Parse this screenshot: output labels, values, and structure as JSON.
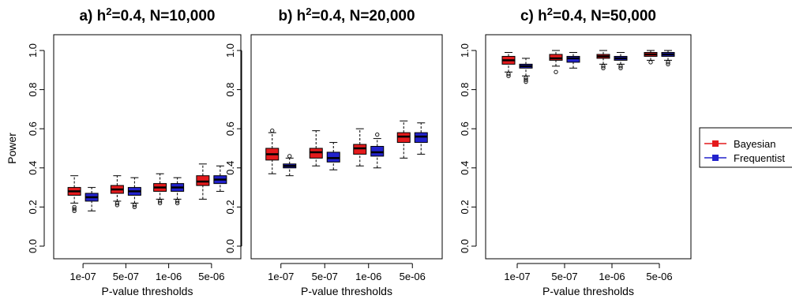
{
  "chart_data": [
    {
      "type": "box",
      "title": "a) h²=0.4, N=10,000",
      "title_main": "a) h",
      "title_sup": "2",
      "title_rest": "=0.4, N=10,000",
      "xlabel": "P-value thresholds",
      "ylabel": "Power",
      "ylim": [
        0,
        1
      ],
      "yticks": [
        "0.0",
        "0.2",
        "0.4",
        "0.6",
        "0.8",
        "1.0"
      ],
      "categories": [
        "1e-07",
        "5e-07",
        "1e-06",
        "5e-06"
      ],
      "series": [
        {
          "name": "Bayesian",
          "color": "#e41a1c",
          "boxes": [
            {
              "min": 0.22,
              "q1": 0.26,
              "median": 0.28,
              "q3": 0.3,
              "max": 0.36,
              "outliers": [
                0.2,
                0.19,
                0.18
              ]
            },
            {
              "min": 0.23,
              "q1": 0.27,
              "median": 0.29,
              "q3": 0.31,
              "max": 0.36,
              "outliers": [
                0.22,
                0.21
              ]
            },
            {
              "min": 0.24,
              "q1": 0.28,
              "median": 0.3,
              "q3": 0.32,
              "max": 0.37,
              "outliers": [
                0.23,
                0.22
              ]
            },
            {
              "min": 0.24,
              "q1": 0.31,
              "median": 0.33,
              "q3": 0.36,
              "max": 0.42,
              "outliers": []
            }
          ]
        },
        {
          "name": "Frequentist",
          "color": "#2222cc",
          "boxes": [
            {
              "min": 0.18,
              "q1": 0.23,
              "median": 0.25,
              "q3": 0.27,
              "max": 0.3,
              "outliers": []
            },
            {
              "min": 0.22,
              "q1": 0.26,
              "median": 0.28,
              "q3": 0.3,
              "max": 0.35,
              "outliers": [
                0.21,
                0.2
              ]
            },
            {
              "min": 0.24,
              "q1": 0.28,
              "median": 0.3,
              "q3": 0.32,
              "max": 0.35,
              "outliers": [
                0.23,
                0.22
              ]
            },
            {
              "min": 0.28,
              "q1": 0.32,
              "median": 0.34,
              "q3": 0.36,
              "max": 0.41,
              "outliers": []
            }
          ]
        }
      ]
    },
    {
      "type": "box",
      "title": "b) h²=0.4, N=20,000",
      "title_main": "b) h",
      "title_sup": "2",
      "title_rest": "=0.4, N=20,000",
      "xlabel": "P-value thresholds",
      "ylabel": "",
      "ylim": [
        0,
        1
      ],
      "yticks": [
        "0.0",
        "0.2",
        "0.4",
        "0.6",
        "0.8",
        "1.0"
      ],
      "categories": [
        "1e-07",
        "5e-07",
        "1e-06",
        "5e-06"
      ],
      "series": [
        {
          "name": "Bayesian",
          "color": "#e41a1c",
          "boxes": [
            {
              "min": 0.37,
              "q1": 0.44,
              "median": 0.47,
              "q3": 0.5,
              "max": 0.58,
              "outliers": [
                0.59
              ]
            },
            {
              "min": 0.41,
              "q1": 0.45,
              "median": 0.48,
              "q3": 0.5,
              "max": 0.59,
              "outliers": []
            },
            {
              "min": 0.41,
              "q1": 0.47,
              "median": 0.5,
              "q3": 0.52,
              "max": 0.6,
              "outliers": []
            },
            {
              "min": 0.45,
              "q1": 0.53,
              "median": 0.56,
              "q3": 0.58,
              "max": 0.64,
              "outliers": []
            }
          ]
        },
        {
          "name": "Frequentist",
          "color": "#2222cc",
          "boxes": [
            {
              "min": 0.36,
              "q1": 0.4,
              "median": 0.41,
              "q3": 0.42,
              "max": 0.45,
              "outliers": [
                0.46
              ]
            },
            {
              "min": 0.39,
              "q1": 0.43,
              "median": 0.45,
              "q3": 0.48,
              "max": 0.53,
              "outliers": []
            },
            {
              "min": 0.4,
              "q1": 0.46,
              "median": 0.48,
              "q3": 0.51,
              "max": 0.55,
              "outliers": [
                0.57
              ]
            },
            {
              "min": 0.47,
              "q1": 0.53,
              "median": 0.56,
              "q3": 0.58,
              "max": 0.63,
              "outliers": []
            }
          ]
        }
      ]
    },
    {
      "type": "box",
      "title": "c) h²=0.4, N=50,000",
      "title_main": "c) h",
      "title_sup": "2",
      "title_rest": "=0.4, N=50,000",
      "xlabel": "P-value thresholds",
      "ylabel": "",
      "ylim": [
        0,
        1
      ],
      "yticks": [
        "0.0",
        "0.2",
        "0.4",
        "0.6",
        "0.8",
        "1.0"
      ],
      "categories": [
        "1e-07",
        "5e-07",
        "1e-06",
        "5e-06"
      ],
      "series": [
        {
          "name": "Bayesian",
          "color": "#e41a1c",
          "boxes": [
            {
              "min": 0.89,
              "q1": 0.93,
              "median": 0.95,
              "q3": 0.97,
              "max": 0.99,
              "outliers": [
                0.88,
                0.87
              ]
            },
            {
              "min": 0.92,
              "q1": 0.95,
              "median": 0.96,
              "q3": 0.98,
              "max": 1.0,
              "outliers": [
                0.89
              ]
            },
            {
              "min": 0.93,
              "q1": 0.96,
              "median": 0.97,
              "q3": 0.98,
              "max": 1.0,
              "outliers": [
                0.92,
                0.91
              ]
            },
            {
              "min": 0.95,
              "q1": 0.97,
              "median": 0.98,
              "q3": 0.99,
              "max": 1.0,
              "outliers": [
                0.94
              ]
            }
          ]
        },
        {
          "name": "Frequentist",
          "color": "#2222cc",
          "boxes": [
            {
              "min": 0.87,
              "q1": 0.91,
              "median": 0.92,
              "q3": 0.93,
              "max": 0.96,
              "outliers": [
                0.86,
                0.85,
                0.84
              ]
            },
            {
              "min": 0.91,
              "q1": 0.94,
              "median": 0.96,
              "q3": 0.97,
              "max": 0.99,
              "outliers": []
            },
            {
              "min": 0.93,
              "q1": 0.95,
              "median": 0.96,
              "q3": 0.97,
              "max": 0.99,
              "outliers": [
                0.92,
                0.91
              ]
            },
            {
              "min": 0.95,
              "q1": 0.97,
              "median": 0.98,
              "q3": 0.99,
              "max": 1.0,
              "outliers": [
                0.94,
                0.93
              ]
            }
          ]
        }
      ]
    }
  ],
  "legend": {
    "placement": "right",
    "items": [
      {
        "label": "Bayesian",
        "color": "#e41a1c"
      },
      {
        "label": "Frequentist",
        "color": "#2222cc"
      }
    ]
  }
}
